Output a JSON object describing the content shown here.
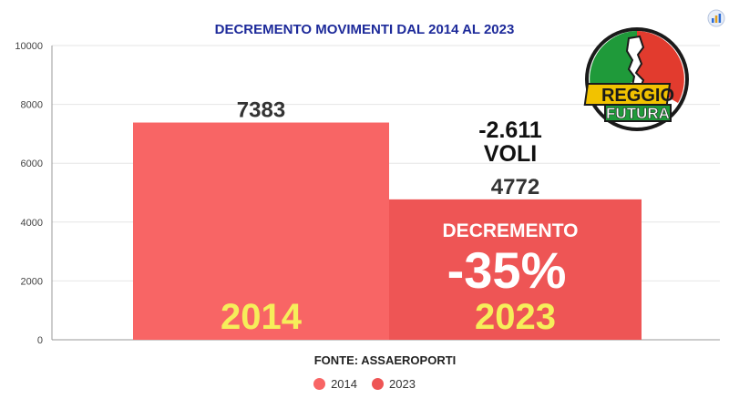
{
  "chart_data": {
    "type": "bar",
    "title": "DECREMENTO MOVIMENTI DAL 2014 AL 2023",
    "categories": [
      "2014",
      "2023"
    ],
    "values": [
      7383,
      4772
    ],
    "data_labels": [
      "7383",
      "4772"
    ],
    "bar_labels": [
      "2014",
      "2023"
    ],
    "colors": [
      "#f86565",
      "#ee5555"
    ],
    "ylim": [
      0,
      10000
    ],
    "yticks": [
      0,
      2000,
      4000,
      6000,
      8000,
      10000
    ],
    "grid": true,
    "legend": [
      "2014",
      "2023"
    ],
    "legend_position": "bottom",
    "annotations": {
      "difference_line1": "-2.611",
      "difference_line2": "VOLI",
      "decrement_label": "DECREMENTO",
      "decrement_value": "-35%"
    },
    "source": "FONTE: ASSAEROPORTI"
  },
  "logo": {
    "line1": "REGGIO",
    "line2": "FUTURA",
    "icon": "italy-flag-calabria-logo"
  },
  "corner_icon": "chart-app-icon"
}
